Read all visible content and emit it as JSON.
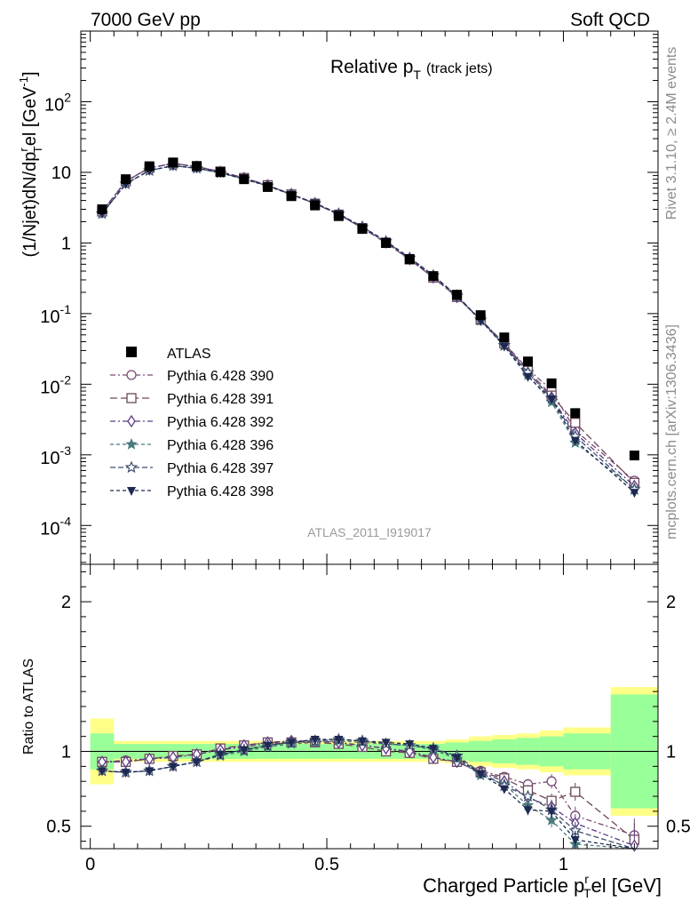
{
  "header": {
    "left": "7000 GeV pp",
    "right": "Soft QCD"
  },
  "side_labels": {
    "rivet": "Rivet 3.1.10, ≥ 2.4M events",
    "mcplots": "mcplots.cern.ch [arXiv:1306.3436]"
  },
  "analysis_id": "ATLAS_2011_I919017",
  "chart_data": {
    "type": "scatter",
    "title_main": "Relative p",
    "title_sub": "T",
    "title_suffix": "(track jets)",
    "xlabel_main": "Charged Particle p",
    "xlabel_sup": "r",
    "xlabel_sub": "T",
    "xlabel_suffix": "el [GeV]",
    "ylabel_top": "(1/Njet)dN/dp",
    "ylabel_ratio": "Ratio to ATLAS",
    "xlim": [
      -0.02,
      1.2
    ],
    "ylim_top_log10": [
      -4.55,
      3.0
    ],
    "ylim_ratio": [
      0.35,
      2.25
    ],
    "x_ticks": [
      "0",
      "0.5",
      "1"
    ],
    "y_ticks_top": [
      "10^-4",
      "10^-3",
      "10^-2",
      "10^-1",
      "1",
      "10",
      "10^2"
    ],
    "y_ticks_ratio": [
      "0.5",
      "1",
      "2"
    ],
    "x": [
      0.025,
      0.075,
      0.125,
      0.175,
      0.225,
      0.275,
      0.325,
      0.375,
      0.425,
      0.475,
      0.525,
      0.575,
      0.625,
      0.675,
      0.725,
      0.775,
      0.825,
      0.875,
      0.925,
      0.975,
      1.025,
      1.15
    ],
    "bin_edges": [
      0,
      0.05,
      0.1,
      0.15,
      0.2,
      0.25,
      0.3,
      0.35,
      0.4,
      0.45,
      0.5,
      0.55,
      0.6,
      0.65,
      0.7,
      0.75,
      0.8,
      0.85,
      0.9,
      0.95,
      1.0,
      1.1,
      1.2
    ],
    "data": {
      "name": "ATLAS",
      "values": [
        3.0,
        8.0,
        12.2,
        13.8,
        12.3,
        10.1,
        8.0,
        6.2,
        4.6,
        3.4,
        2.4,
        1.58,
        1.0,
        0.59,
        0.34,
        0.185,
        0.095,
        0.046,
        0.021,
        0.0103,
        0.0039,
        0.00098
      ],
      "band_inner": [
        0.12,
        0.05,
        0.05,
        0.05,
        0.05,
        0.05,
        0.05,
        0.05,
        0.05,
        0.05,
        0.05,
        0.05,
        0.05,
        0.05,
        0.05,
        0.06,
        0.07,
        0.08,
        0.09,
        0.1,
        0.12,
        0.38
      ],
      "band_outer": [
        0.22,
        0.07,
        0.07,
        0.07,
        0.07,
        0.07,
        0.07,
        0.07,
        0.07,
        0.07,
        0.07,
        0.07,
        0.07,
        0.07,
        0.07,
        0.08,
        0.1,
        0.11,
        0.12,
        0.14,
        0.16,
        0.43
      ]
    },
    "series": [
      {
        "name": "Pythia 6.428 390",
        "color": "#7a4a74",
        "marker": "circle-open",
        "dash": "6,3,2,3",
        "ratio": [
          0.93,
          0.94,
          0.95,
          0.96,
          0.98,
          1.01,
          1.03,
          1.05,
          1.06,
          1.07,
          1.06,
          1.04,
          1.02,
          0.99,
          0.96,
          0.93,
          0.87,
          0.83,
          0.78,
          0.8,
          0.57,
          0.44
        ]
      },
      {
        "name": "Pythia 6.428 391",
        "color": "#6d4858",
        "marker": "square-open",
        "dash": "8,4",
        "ratio": [
          0.93,
          0.93,
          0.95,
          0.97,
          0.98,
          1.02,
          1.04,
          1.06,
          1.06,
          1.06,
          1.05,
          1.03,
          1.0,
          0.99,
          0.95,
          0.93,
          0.86,
          0.82,
          0.74,
          0.67,
          0.73,
          0.41
        ]
      },
      {
        "name": "Pythia 6.428 392",
        "color": "#5b3c85",
        "marker": "diamond-open",
        "dash": "6,3,2,3",
        "ratio": [
          0.93,
          0.93,
          0.95,
          0.96,
          0.98,
          1.01,
          1.04,
          1.06,
          1.07,
          1.07,
          1.06,
          1.04,
          1.02,
          1.0,
          0.96,
          0.93,
          0.86,
          0.8,
          0.69,
          0.63,
          0.52,
          0.37
        ]
      },
      {
        "name": "Pythia 6.428 396",
        "color": "#4a7a7c",
        "marker": "star-filled",
        "dash": "4,3",
        "ratio": [
          0.87,
          0.86,
          0.87,
          0.9,
          0.93,
          0.97,
          1.0,
          1.03,
          1.05,
          1.06,
          1.07,
          1.06,
          1.05,
          1.04,
          1.01,
          0.95,
          0.84,
          0.78,
          0.64,
          0.54,
          0.38,
          0.34
        ]
      },
      {
        "name": "Pythia 6.428 397",
        "color": "#3f4f6e",
        "marker": "star-open",
        "dash": "6,3",
        "ratio": [
          0.87,
          0.86,
          0.87,
          0.9,
          0.93,
          0.98,
          1.01,
          1.04,
          1.06,
          1.07,
          1.08,
          1.07,
          1.05,
          1.04,
          1.02,
          0.97,
          0.86,
          0.77,
          0.7,
          0.61,
          0.47,
          0.33
        ]
      },
      {
        "name": "Pythia 6.428 398",
        "color": "#1e2a52",
        "marker": "triangle-down-filled",
        "dash": "4,3",
        "ratio": [
          0.87,
          0.86,
          0.87,
          0.9,
          0.93,
          0.98,
          1.01,
          1.04,
          1.06,
          1.08,
          1.08,
          1.07,
          1.06,
          1.05,
          1.02,
          0.96,
          0.85,
          0.75,
          0.61,
          0.6,
          0.41,
          0.3
        ]
      }
    ]
  },
  "colors": {
    "band_inner": "#99ff99",
    "band_outer": "#ffff88",
    "data_marker": "#000000"
  }
}
